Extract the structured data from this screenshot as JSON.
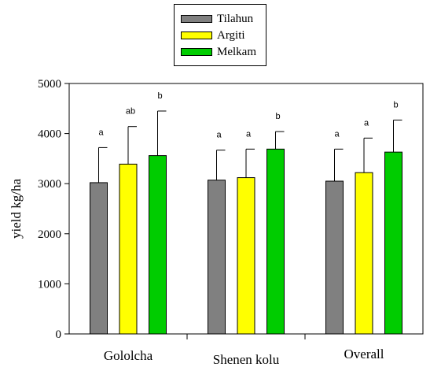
{
  "legend": [
    {
      "name": "Tilahun",
      "color": "#808080"
    },
    {
      "name": "Argiti",
      "color": "#ffff00"
    },
    {
      "name": "Melkam",
      "color": "#00cc00"
    }
  ],
  "chart_data": {
    "type": "bar",
    "title": "",
    "xlabel": "",
    "ylabel": "yield kg/ha",
    "categories": [
      "Gololcha",
      "Shenen kolu",
      "Overall"
    ],
    "ylim": [
      0,
      5000
    ],
    "yticks": [
      0,
      1000,
      2000,
      3000,
      4000,
      5000
    ],
    "legend_position": "top-center",
    "series": [
      {
        "name": "Tilahun",
        "color": "#808080",
        "values": [
          3020,
          3070,
          3050
        ],
        "errors": [
          700,
          600,
          640
        ],
        "letters": [
          "a",
          "a",
          "a"
        ]
      },
      {
        "name": "Argiti",
        "color": "#ffff00",
        "values": [
          3390,
          3120,
          3220
        ],
        "errors": [
          750,
          570,
          690
        ],
        "letters": [
          "ab",
          "a",
          "a"
        ]
      },
      {
        "name": "Melkam",
        "color": "#00cc00",
        "values": [
          3560,
          3690,
          3630
        ],
        "errors": [
          890,
          350,
          640
        ],
        "letters": [
          "b",
          "b",
          "b"
        ]
      }
    ]
  }
}
